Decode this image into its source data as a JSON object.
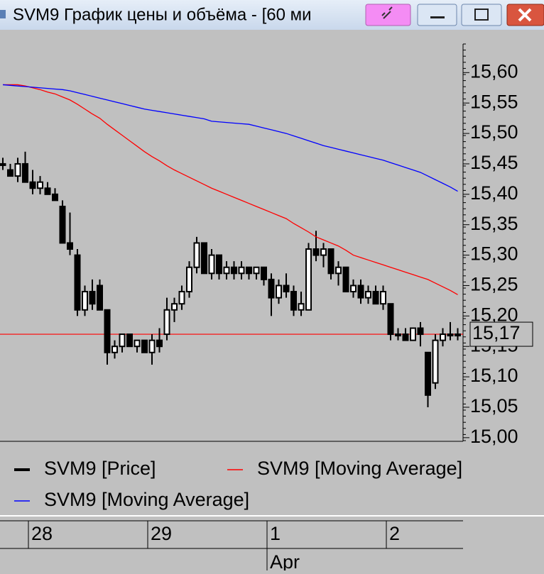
{
  "window": {
    "title": "SVM9 График цены и объёма - [60 ми"
  },
  "chart_data": {
    "type": "candlestick",
    "categories": [
      null,
      null,
      null,
      null,
      "28",
      null,
      null,
      null,
      null,
      null,
      null,
      null,
      null,
      null,
      null,
      null,
      null,
      null,
      null,
      null,
      "29",
      null,
      null,
      null,
      null,
      null,
      null,
      null,
      null,
      null,
      null,
      null,
      null,
      null,
      null,
      null,
      "1",
      null,
      null,
      null,
      null,
      null,
      null,
      null,
      null,
      null,
      null,
      null,
      null,
      null,
      null,
      null,
      "2",
      null,
      null,
      null,
      null,
      null,
      null,
      null,
      null,
      null
    ],
    "month_label": "Apr",
    "series": [
      {
        "name": "SVM9 [Price]",
        "color": "#000000",
        "open": [
          15.45,
          15.44,
          15.43,
          15.45,
          15.42,
          15.41,
          15.41,
          15.4,
          15.38,
          15.32,
          15.3,
          15.21,
          15.24,
          15.25,
          15.21,
          15.14,
          15.15,
          15.17,
          15.15,
          15.16,
          15.14,
          15.16,
          15.17,
          15.21,
          15.22,
          15.24,
          15.28,
          15.32,
          15.27,
          15.3,
          15.27,
          15.28,
          15.27,
          15.28,
          15.27,
          15.28,
          15.26,
          15.23,
          15.25,
          15.24,
          15.21,
          15.21,
          15.31,
          15.3,
          15.31,
          15.27,
          15.28,
          15.24,
          15.25,
          15.23,
          15.24,
          15.22,
          15.22,
          15.17,
          15.17,
          15.16,
          15.18,
          15.14,
          15.09,
          15.16,
          15.17,
          15.17
        ],
        "high": [
          15.46,
          15.45,
          15.46,
          15.47,
          15.44,
          15.43,
          15.42,
          15.41,
          15.39,
          15.37,
          15.31,
          15.25,
          15.26,
          15.26,
          15.21,
          15.16,
          15.17,
          15.17,
          15.16,
          15.16,
          15.17,
          15.18,
          15.23,
          15.23,
          15.25,
          15.29,
          15.33,
          15.32,
          15.31,
          15.3,
          15.29,
          15.29,
          15.29,
          15.28,
          15.28,
          15.28,
          15.27,
          15.26,
          15.27,
          15.25,
          15.24,
          15.32,
          15.34,
          15.32,
          15.31,
          15.29,
          15.28,
          15.26,
          15.26,
          15.25,
          15.25,
          15.25,
          15.22,
          15.18,
          15.18,
          15.18,
          15.19,
          15.14,
          15.17,
          15.18,
          15.19,
          15.18
        ],
        "low": [
          15.44,
          15.43,
          15.42,
          15.42,
          15.4,
          15.4,
          15.4,
          15.39,
          15.32,
          15.3,
          15.2,
          15.2,
          15.21,
          15.21,
          15.12,
          15.13,
          15.14,
          15.15,
          15.14,
          15.14,
          15.12,
          15.14,
          15.16,
          15.19,
          15.21,
          15.23,
          15.27,
          15.27,
          15.26,
          15.26,
          15.26,
          15.26,
          15.26,
          15.26,
          15.26,
          15.25,
          15.2,
          15.22,
          15.23,
          15.2,
          15.2,
          15.21,
          15.29,
          15.28,
          15.26,
          15.25,
          15.24,
          15.23,
          15.22,
          15.22,
          15.22,
          15.21,
          15.16,
          15.16,
          15.16,
          15.16,
          15.15,
          15.05,
          15.08,
          15.15,
          15.16,
          15.16
        ],
        "close": [
          15.45,
          15.43,
          15.45,
          15.42,
          15.41,
          15.42,
          15.4,
          15.39,
          15.32,
          15.31,
          15.21,
          15.24,
          15.22,
          15.21,
          15.14,
          15.15,
          15.17,
          15.15,
          15.16,
          15.14,
          15.16,
          15.15,
          15.21,
          15.22,
          15.24,
          15.28,
          15.32,
          15.27,
          15.3,
          15.27,
          15.28,
          15.27,
          15.28,
          15.27,
          15.28,
          15.26,
          15.23,
          15.25,
          15.24,
          15.21,
          15.22,
          15.31,
          15.3,
          15.31,
          15.27,
          15.28,
          15.24,
          15.25,
          15.23,
          15.24,
          15.22,
          15.24,
          15.17,
          15.17,
          15.16,
          15.18,
          15.17,
          15.07,
          15.16,
          15.17,
          15.17,
          15.17
        ]
      },
      {
        "name": "SVM9 [Moving Average]",
        "color": "#ff0000",
        "values": [
          15.58,
          15.58,
          15.58,
          15.578,
          15.575,
          15.572,
          15.568,
          15.565,
          15.56,
          15.555,
          15.548,
          15.54,
          15.532,
          15.525,
          15.515,
          15.506,
          15.497,
          15.488,
          15.479,
          15.47,
          15.462,
          15.455,
          15.447,
          15.44,
          15.434,
          15.428,
          15.422,
          15.416,
          15.41,
          15.405,
          15.4,
          15.395,
          15.39,
          15.385,
          15.38,
          15.375,
          15.37,
          15.365,
          15.36,
          15.352,
          15.345,
          15.338,
          15.33,
          15.325,
          15.32,
          15.315,
          15.308,
          15.3,
          15.296,
          15.292,
          15.288,
          15.284,
          15.28,
          15.276,
          15.272,
          15.268,
          15.264,
          15.26,
          15.254,
          15.248,
          15.242,
          15.235
        ]
      },
      {
        "name": "SVM9 [Moving Average]",
        "color": "#0000ff",
        "values": [
          15.58,
          15.579,
          15.578,
          15.577,
          15.576,
          15.575,
          15.574,
          15.573,
          15.572,
          15.57,
          15.567,
          15.564,
          15.561,
          15.558,
          15.555,
          15.552,
          15.549,
          15.546,
          15.543,
          15.54,
          15.538,
          15.536,
          15.534,
          15.532,
          15.53,
          15.528,
          15.526,
          15.524,
          15.52,
          15.519,
          15.518,
          15.517,
          15.516,
          15.515,
          15.512,
          15.509,
          15.506,
          15.503,
          15.5,
          15.496,
          15.492,
          15.488,
          15.484,
          15.48,
          15.477,
          15.474,
          15.471,
          15.468,
          15.465,
          15.462,
          15.459,
          15.456,
          15.452,
          15.448,
          15.444,
          15.44,
          15.436,
          15.43,
          15.424,
          15.418,
          15.412,
          15.405
        ]
      }
    ],
    "last_price": {
      "value": 15.17,
      "label": "15,17"
    },
    "ylim": [
      14.994,
      15.647
    ],
    "yticks": [
      {
        "value": 15.0,
        "label": "15,00"
      },
      {
        "value": 15.05,
        "label": "15,05"
      },
      {
        "value": 15.1,
        "label": "15,10"
      },
      {
        "value": 15.15,
        "label": "15,15"
      },
      {
        "value": 15.2,
        "label": "15,20"
      },
      {
        "value": 15.25,
        "label": "15,25"
      },
      {
        "value": 15.3,
        "label": "15,30"
      },
      {
        "value": 15.35,
        "label": "15,35"
      },
      {
        "value": 15.4,
        "label": "15,40"
      },
      {
        "value": 15.45,
        "label": "15,45"
      },
      {
        "value": 15.5,
        "label": "15,50"
      },
      {
        "value": 15.55,
        "label": "15,55"
      },
      {
        "value": 15.6,
        "label": "15,60"
      }
    ]
  }
}
